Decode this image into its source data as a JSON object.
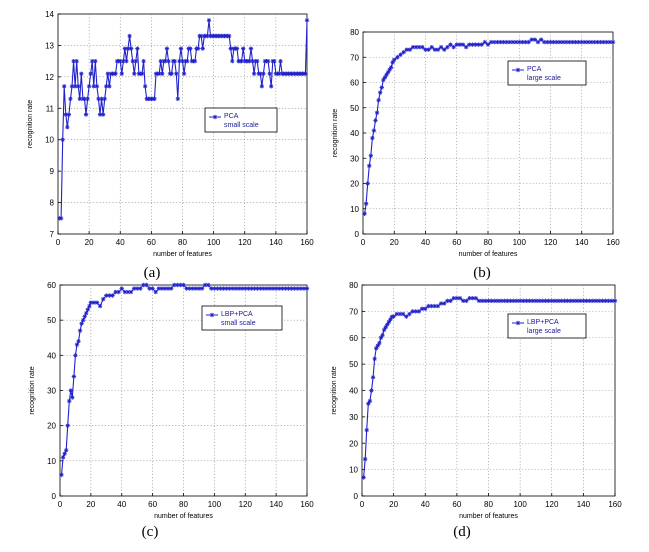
{
  "colors": {
    "series": "#2222cc",
    "legend_text": "#1a1a99"
  },
  "chart_data": [
    {
      "type": "line",
      "caption": "(a)",
      "xlabel": "number of features",
      "ylabel": "recognition rate",
      "xlim": [
        0,
        160
      ],
      "ylim": [
        7,
        14
      ],
      "xticks": [
        0,
        20,
        40,
        60,
        80,
        100,
        120,
        140,
        160
      ],
      "yticks": [
        7,
        8,
        9,
        10,
        11,
        12,
        13,
        14
      ],
      "grid": true,
      "legend_position": "right-middle",
      "legend_line1": "PCA",
      "legend_line2": "small  scale",
      "series": [
        {
          "marker": "star",
          "x": [
            1,
            2,
            3,
            4,
            5,
            6,
            7,
            8,
            9,
            10,
            11,
            12,
            13,
            14,
            15,
            16,
            17,
            18,
            19,
            20,
            21,
            22,
            23,
            24,
            25,
            26,
            27,
            28,
            29,
            30,
            31,
            32,
            33,
            34,
            35,
            36,
            37,
            38,
            39,
            40,
            41,
            42,
            43,
            44,
            45,
            46,
            47,
            48,
            49,
            50,
            51,
            52,
            53,
            54,
            55,
            56,
            57,
            58,
            59,
            60,
            61,
            62,
            63,
            64,
            65,
            66,
            67,
            68,
            69,
            70,
            71,
            72,
            73,
            74,
            75,
            76,
            77,
            78,
            79,
            80,
            81,
            82,
            83,
            84,
            85,
            86,
            87,
            88,
            89,
            90,
            91,
            92,
            93,
            94,
            95,
            96,
            97,
            98,
            99,
            100,
            101,
            102,
            103,
            104,
            105,
            106,
            107,
            108,
            109,
            110,
            111,
            112,
            113,
            114,
            115,
            116,
            117,
            118,
            119,
            120,
            121,
            122,
            123,
            124,
            125,
            126,
            127,
            128,
            129,
            130,
            131,
            132,
            133,
            134,
            135,
            136,
            137,
            138,
            139,
            140,
            141,
            142,
            143,
            144,
            145,
            146,
            147,
            148,
            149,
            150,
            151,
            152,
            153,
            154,
            155,
            156,
            157,
            158,
            159,
            160
          ],
          "y": [
            7.5,
            7.5,
            10,
            11.7,
            10.8,
            10.4,
            10.8,
            11.3,
            11.7,
            12.5,
            11.7,
            12.5,
            11.7,
            11.3,
            12.1,
            11.3,
            11.3,
            10.8,
            11.3,
            11.7,
            12.1,
            12.5,
            11.7,
            12.5,
            11.7,
            11.3,
            10.8,
            11.3,
            10.8,
            11.3,
            11.7,
            12.1,
            11.7,
            12.1,
            12.1,
            12.1,
            12.1,
            12.5,
            12.5,
            12.5,
            12.1,
            12.5,
            12.9,
            12.5,
            12.9,
            13.3,
            12.9,
            12.5,
            12.1,
            12.5,
            12.9,
            12.1,
            12.1,
            12.1,
            12.5,
            11.7,
            11.3,
            11.3,
            11.3,
            11.3,
            11.3,
            11.3,
            12.1,
            12.1,
            12.1,
            12.5,
            12.1,
            12.5,
            12.5,
            12.9,
            12.5,
            12.1,
            12.1,
            12.5,
            12.5,
            12.1,
            11.3,
            12.5,
            12.9,
            12.5,
            12.1,
            12.5,
            12.5,
            12.9,
            12.9,
            12.5,
            12.5,
            12.5,
            12.9,
            12.9,
            13.3,
            13.3,
            12.9,
            13.3,
            13.3,
            13.3,
            13.8,
            13.3,
            13.3,
            13.3,
            13.3,
            13.3,
            13.3,
            13.3,
            13.3,
            13.3,
            13.3,
            13.3,
            13.3,
            13.3,
            12.9,
            12.5,
            12.9,
            12.9,
            12.9,
            12.5,
            12.5,
            12.5,
            12.9,
            12.5,
            12.5,
            12.5,
            12.5,
            12.9,
            12.5,
            12.1,
            12.5,
            12.5,
            12.1,
            12.1,
            11.7,
            12.1,
            12.5,
            12.5,
            12.5,
            12.1,
            11.7,
            12.5,
            12.5,
            12.1,
            12.1,
            12.1,
            12.5,
            12.1,
            12.1,
            12.1,
            12.1,
            12.1,
            12.1,
            12.1,
            12.1,
            12.1,
            12.1,
            12.1,
            12.1,
            12.1,
            12.1,
            12.1,
            12.1,
            13.8
          ]
        }
      ]
    },
    {
      "type": "line",
      "caption": "(b)",
      "xlabel": "number of features",
      "ylabel": "recognition rate",
      "xlim": [
        0,
        160
      ],
      "ylim": [
        0,
        80
      ],
      "xticks": [
        0,
        20,
        40,
        60,
        80,
        100,
        120,
        140,
        160
      ],
      "yticks": [
        0,
        10,
        20,
        30,
        40,
        50,
        60,
        70,
        80
      ],
      "grid": true,
      "legend_position": "right-top",
      "legend_line1": "PCA",
      "legend_line2": "large  scale",
      "series": [
        {
          "marker": "star",
          "x": [
            1,
            2,
            3,
            4,
            5,
            6,
            7,
            8,
            9,
            10,
            11,
            12,
            13,
            14,
            15,
            16,
            17,
            18,
            19,
            20,
            22,
            24,
            26,
            28,
            30,
            32,
            34,
            36,
            38,
            40,
            42,
            44,
            46,
            48,
            50,
            52,
            54,
            56,
            58,
            60,
            62,
            64,
            66,
            68,
            70,
            72,
            74,
            76,
            78,
            80,
            82,
            84,
            86,
            88,
            90,
            92,
            94,
            96,
            98,
            100,
            102,
            104,
            106,
            108,
            110,
            112,
            114,
            116,
            118,
            120,
            122,
            124,
            126,
            128,
            130,
            132,
            134,
            136,
            138,
            140,
            142,
            144,
            146,
            148,
            150,
            152,
            154,
            156,
            158,
            160
          ],
          "y": [
            8,
            12,
            20,
            27,
            31,
            38,
            41,
            45,
            48,
            53,
            56,
            58,
            61,
            62,
            63,
            64,
            65,
            66,
            68,
            69,
            70,
            71,
            72,
            73,
            73,
            74,
            74,
            74,
            74,
            73,
            73,
            74,
            73,
            73,
            74,
            73,
            74,
            75,
            74,
            75,
            75,
            75,
            74,
            75,
            75,
            75,
            75,
            75,
            76,
            75,
            76,
            76,
            76,
            76,
            76,
            76,
            76,
            76,
            76,
            76,
            76,
            76,
            76,
            77,
            77,
            76,
            77,
            76,
            76,
            76,
            76,
            76,
            76,
            76,
            76,
            76,
            76,
            76,
            76,
            76,
            76,
            76,
            76,
            76,
            76,
            76,
            76,
            76,
            76,
            76
          ]
        }
      ]
    },
    {
      "type": "line",
      "caption": "(c)",
      "xlabel": "number of features",
      "ylabel": "recognition rate",
      "xlim": [
        0,
        160
      ],
      "ylim": [
        0,
        60
      ],
      "xticks": [
        0,
        20,
        40,
        60,
        80,
        100,
        120,
        140,
        160
      ],
      "yticks": [
        0,
        10,
        20,
        30,
        40,
        50,
        60
      ],
      "grid": true,
      "legend_position": "right-top",
      "legend_line1": "LBP+PCA",
      "legend_line2": "small  scale",
      "series": [
        {
          "marker": "star",
          "x": [
            1,
            2,
            3,
            4,
            5,
            6,
            7,
            8,
            9,
            10,
            11,
            12,
            13,
            14,
            15,
            16,
            17,
            18,
            19,
            20,
            22,
            24,
            26,
            28,
            30,
            32,
            34,
            36,
            38,
            40,
            42,
            44,
            46,
            48,
            50,
            52,
            54,
            56,
            58,
            60,
            62,
            64,
            66,
            68,
            70,
            72,
            74,
            76,
            78,
            80,
            82,
            84,
            86,
            88,
            90,
            92,
            94,
            96,
            98,
            100,
            102,
            104,
            106,
            108,
            110,
            112,
            114,
            116,
            118,
            120,
            122,
            124,
            126,
            128,
            130,
            132,
            134,
            136,
            138,
            140,
            142,
            144,
            146,
            148,
            150,
            152,
            154,
            156,
            158,
            160
          ],
          "y": [
            6,
            11,
            12,
            13,
            20,
            27,
            30,
            28,
            34,
            40,
            43,
            44,
            47,
            49,
            50,
            51,
            52,
            53,
            54,
            55,
            55,
            55,
            54,
            56,
            57,
            57,
            57,
            58,
            58,
            59,
            58,
            58,
            58,
            59,
            59,
            59,
            60,
            60,
            59,
            59,
            58,
            59,
            59,
            59,
            59,
            59,
            60,
            60,
            60,
            60,
            59,
            59,
            59,
            59,
            59,
            59,
            60,
            60,
            59,
            59,
            59,
            59,
            59,
            59,
            59,
            59,
            59,
            59,
            59,
            59,
            59,
            59,
            59,
            59,
            59,
            59,
            59,
            59,
            59,
            59,
            59,
            59,
            59,
            59,
            59,
            59,
            59,
            59,
            59,
            59
          ]
        }
      ]
    },
    {
      "type": "line",
      "caption": "(d)",
      "xlabel": "number of features",
      "ylabel": "recognition rate",
      "xlim": [
        0,
        160
      ],
      "ylim": [
        0,
        80
      ],
      "xticks": [
        0,
        20,
        40,
        60,
        80,
        100,
        120,
        140,
        160
      ],
      "yticks": [
        0,
        10,
        20,
        30,
        40,
        50,
        60,
        70,
        80
      ],
      "grid": true,
      "legend_position": "right-top",
      "legend_line1": "LBP+PCA",
      "legend_line2": "large  scale",
      "series": [
        {
          "marker": "star",
          "x": [
            1,
            2,
            3,
            4,
            5,
            6,
            7,
            8,
            9,
            10,
            11,
            12,
            13,
            14,
            15,
            16,
            17,
            18,
            19,
            20,
            22,
            24,
            26,
            28,
            30,
            32,
            34,
            36,
            38,
            40,
            42,
            44,
            46,
            48,
            50,
            52,
            54,
            56,
            58,
            60,
            62,
            64,
            66,
            68,
            70,
            72,
            74,
            76,
            78,
            80,
            82,
            84,
            86,
            88,
            90,
            92,
            94,
            96,
            98,
            100,
            102,
            104,
            106,
            108,
            110,
            112,
            114,
            116,
            118,
            120,
            122,
            124,
            126,
            128,
            130,
            132,
            134,
            136,
            138,
            140,
            142,
            144,
            146,
            148,
            150,
            152,
            154,
            156,
            158,
            160
          ],
          "y": [
            7,
            14,
            25,
            35,
            36,
            40,
            45,
            52,
            56,
            57,
            58,
            60,
            61,
            63,
            64,
            65,
            66,
            67,
            68,
            68,
            69,
            69,
            69,
            68,
            69,
            70,
            70,
            70,
            71,
            71,
            72,
            72,
            72,
            72,
            73,
            73,
            74,
            74,
            75,
            75,
            75,
            74,
            74,
            75,
            75,
            75,
            74,
            74,
            74,
            74,
            74,
            74,
            74,
            74,
            74,
            74,
            74,
            74,
            74,
            74,
            74,
            74,
            74,
            74,
            74,
            74,
            74,
            74,
            74,
            74,
            74,
            74,
            74,
            74,
            74,
            74,
            74,
            74,
            74,
            74,
            74,
            74,
            74,
            74,
            74,
            74,
            74,
            74,
            74,
            74
          ]
        }
      ]
    }
  ]
}
